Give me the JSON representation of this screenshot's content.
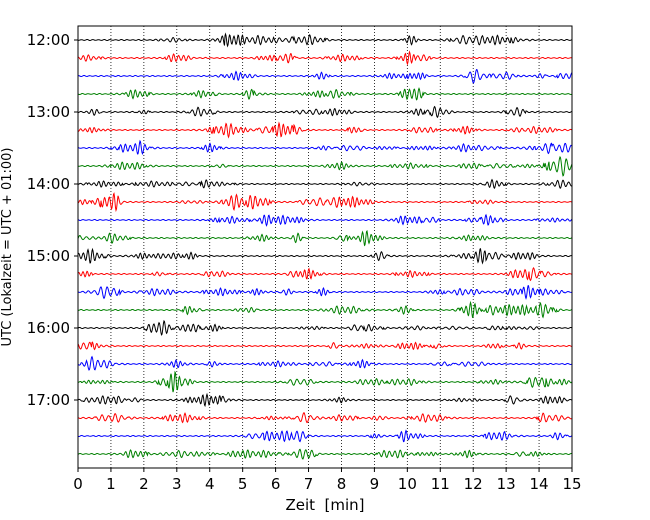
{
  "chart_data": {
    "type": "line",
    "title": "",
    "xlabel": "Zeit  [min]",
    "ylabel": "UTC (Lokalzeit = UTC + 01:00)",
    "xlim": [
      0,
      15
    ],
    "x_ticks": [
      "0",
      "1",
      "2",
      "3",
      "4",
      "5",
      "6",
      "7",
      "8",
      "9",
      "10",
      "11",
      "12",
      "13",
      "14",
      "15"
    ],
    "y_ticks": [
      "12:00",
      "13:00",
      "14:00",
      "15:00",
      "16:00",
      "17:00"
    ],
    "grid": "vertical dotted",
    "trace_colors": [
      "#000000",
      "#ff0000",
      "#0000ff",
      "#008000"
    ],
    "series": [
      {
        "start": "12:00"
      },
      {
        "start": "12:15"
      },
      {
        "start": "12:30"
      },
      {
        "start": "12:45"
      },
      {
        "start": "13:00"
      },
      {
        "start": "13:15"
      },
      {
        "start": "13:30"
      },
      {
        "start": "13:45"
      },
      {
        "start": "14:00"
      },
      {
        "start": "14:15"
      },
      {
        "start": "14:30"
      },
      {
        "start": "14:45"
      },
      {
        "start": "15:00"
      },
      {
        "start": "15:15"
      },
      {
        "start": "15:30"
      },
      {
        "start": "15:45"
      },
      {
        "start": "16:00"
      },
      {
        "start": "16:15"
      },
      {
        "start": "16:30"
      },
      {
        "start": "16:45"
      },
      {
        "start": "17:00"
      },
      {
        "start": "17:15"
      },
      {
        "start": "17:30"
      },
      {
        "start": "17:45"
      }
    ]
  }
}
